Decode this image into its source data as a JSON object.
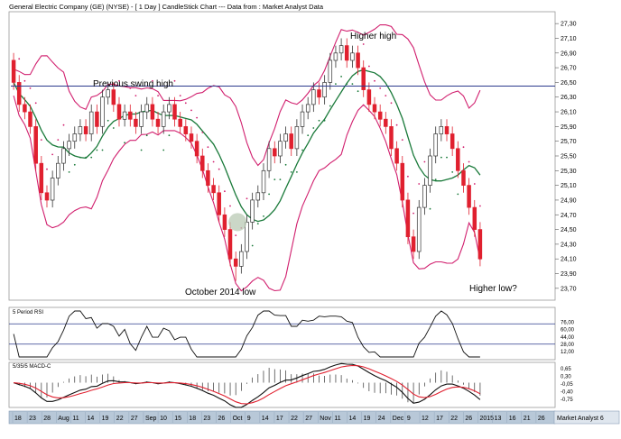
{
  "chart_data": {
    "type": "candlestick",
    "title": "General Electric Company (GE) (NYSE) - [ 1 Day ] CandleStick Chart --- Data from : Market Analyst Data",
    "watermark": "Market Analyst 6",
    "price_axis": {
      "ticks": [
        "27,30",
        "27,10",
        "26,90",
        "26,70",
        "26,50",
        "26,30",
        "26,10",
        "25,90",
        "25,70",
        "25,50",
        "25,30",
        "25,10",
        "24,90",
        "24,70",
        "24,50",
        "24,30",
        "24,10",
        "23,90",
        "23,70"
      ],
      "ylim": [
        23.6,
        27.4
      ]
    },
    "horizontal_line": 26.45,
    "annotations": [
      {
        "text": "Previous swing high"
      },
      {
        "text": "Higher high"
      },
      {
        "text": "October 2014 low"
      },
      {
        "text": "Higher low?"
      }
    ],
    "highlight_circle_price": 24.6,
    "x_axis_labels": [
      "18",
      "23",
      "28",
      "Aug",
      "11",
      "14",
      "19",
      "22",
      "27",
      "Sep",
      "10",
      "15",
      "18",
      "23",
      "26",
      "Oct",
      "9",
      "14",
      "17",
      "22",
      "27",
      "Nov",
      "11",
      "14",
      "19",
      "24",
      "Dec",
      "9",
      "12",
      "17",
      "22",
      "26",
      "2015",
      "13",
      "16",
      "21",
      "26"
    ],
    "candles": {
      "open": [
        26.8,
        26.5,
        26.2,
        26.1,
        25.9,
        25.4,
        25.0,
        24.9,
        25.2,
        25.4,
        25.6,
        25.7,
        25.8,
        25.9,
        25.8,
        26.1,
        25.9,
        26.3,
        26.4,
        26.2,
        26.0,
        26.1,
        26.0,
        25.9,
        26.1,
        26.2,
        26.0,
        25.9,
        26.1,
        26.2,
        26.0,
        25.9,
        25.8,
        25.7,
        25.5,
        25.3,
        25.1,
        25.0,
        24.7,
        24.5,
        24.1,
        24.0,
        24.2,
        24.6,
        24.9,
        25.0,
        25.3,
        25.6,
        25.5,
        25.7,
        25.8,
        25.6,
        25.9,
        26.1,
        26.2,
        26.4,
        26.3,
        26.5,
        26.8,
        26.9,
        27.0,
        26.8,
        26.9,
        26.7,
        26.4,
        26.2,
        26.1,
        26.0,
        25.9,
        25.6,
        25.4,
        24.9,
        24.4,
        24.2,
        24.8,
        25.1,
        25.5,
        25.8,
        25.9,
        25.8,
        25.6,
        25.3,
        25.1,
        24.8,
        24.5
      ],
      "close": [
        26.5,
        26.2,
        26.1,
        25.9,
        25.4,
        25.0,
        24.9,
        25.2,
        25.4,
        25.6,
        25.7,
        25.8,
        25.9,
        25.8,
        26.1,
        25.9,
        26.3,
        26.4,
        26.2,
        26.0,
        26.1,
        26.0,
        25.9,
        26.1,
        26.2,
        26.0,
        25.9,
        26.1,
        26.2,
        26.0,
        25.9,
        25.8,
        25.7,
        25.5,
        25.3,
        25.1,
        25.0,
        24.7,
        24.5,
        24.1,
        24.0,
        24.2,
        24.6,
        24.9,
        25.0,
        25.3,
        25.6,
        25.5,
        25.7,
        25.8,
        25.6,
        25.9,
        26.1,
        26.2,
        26.4,
        26.3,
        26.5,
        26.8,
        26.9,
        27.0,
        26.8,
        26.9,
        26.7,
        26.4,
        26.2,
        26.1,
        26.0,
        25.9,
        25.6,
        25.4,
        24.9,
        24.4,
        24.2,
        24.8,
        25.1,
        25.5,
        25.8,
        25.9,
        25.8,
        25.6,
        25.3,
        25.1,
        24.8,
        24.5,
        24.1
      ],
      "high": [
        26.9,
        26.6,
        26.3,
        26.2,
        26.0,
        25.5,
        25.1,
        25.3,
        25.5,
        25.7,
        25.8,
        25.9,
        26.0,
        26.0,
        26.2,
        26.2,
        26.4,
        26.5,
        26.5,
        26.3,
        26.2,
        26.2,
        26.1,
        26.2,
        26.3,
        26.3,
        26.1,
        26.2,
        26.3,
        26.3,
        26.1,
        26.0,
        25.9,
        25.8,
        25.6,
        25.4,
        25.2,
        25.1,
        24.8,
        24.6,
        24.2,
        24.3,
        24.7,
        25.0,
        25.1,
        25.4,
        25.7,
        25.7,
        25.8,
        25.9,
        25.9,
        26.0,
        26.2,
        26.3,
        26.5,
        26.5,
        26.6,
        26.9,
        27.0,
        27.1,
        27.1,
        27.0,
        27.0,
        26.8,
        26.5,
        26.3,
        26.2,
        26.1,
        26.0,
        25.7,
        25.5,
        25.0,
        24.5,
        24.9,
        25.2,
        25.6,
        25.9,
        26.0,
        26.0,
        25.9,
        25.7,
        25.4,
        25.2,
        24.9,
        24.6
      ],
      "low": [
        26.4,
        26.1,
        26.0,
        25.8,
        25.3,
        24.9,
        24.8,
        24.8,
        25.1,
        25.3,
        25.5,
        25.6,
        25.7,
        25.7,
        25.7,
        25.8,
        25.8,
        26.2,
        26.1,
        25.9,
        25.9,
        25.9,
        25.8,
        25.8,
        26.0,
        25.9,
        25.8,
        25.8,
        26.0,
        25.9,
        25.8,
        25.7,
        25.6,
        25.4,
        25.2,
        25.0,
        24.9,
        24.6,
        24.4,
        24.0,
        23.8,
        23.9,
        24.1,
        24.5,
        24.8,
        24.9,
        25.2,
        25.4,
        25.4,
        25.6,
        25.5,
        25.5,
        25.8,
        26.0,
        26.1,
        26.2,
        26.2,
        26.4,
        26.7,
        26.8,
        26.7,
        26.7,
        26.6,
        26.3,
        26.1,
        26.0,
        25.9,
        25.8,
        25.5,
        25.3,
        24.8,
        24.3,
        24.1,
        24.1,
        24.7,
        25.0,
        25.4,
        25.7,
        25.7,
        25.5,
        25.2,
        25.0,
        24.7,
        24.4,
        24.0
      ]
    },
    "indicators": [
      {
        "name": "5 Period RSI",
        "ticks": [
          "76,00",
          "60,00",
          "44,00",
          "28,00",
          "12,00"
        ],
        "ylim": [
          0,
          100
        ],
        "lines": [
          72,
          28
        ]
      },
      {
        "name": "5/35/5 MACD-C",
        "ticks": [
          "0,65",
          "0,30",
          "-0,05",
          "-0,40",
          "-0,75"
        ],
        "ylim": [
          -1.0,
          0.8
        ]
      }
    ]
  }
}
